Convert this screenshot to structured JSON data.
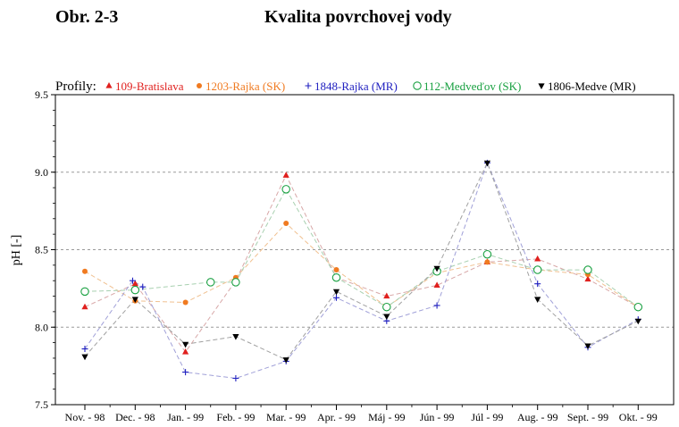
{
  "header": {
    "figure_label": "Obr. 2-3",
    "title": "Kvalita povrchovej vody"
  },
  "chart_data": {
    "type": "line",
    "legend_prefix": "Profily:",
    "legend_placement": "top",
    "ylabel": "pH [-]",
    "xlabel": "",
    "ylim": [
      7.5,
      9.5
    ],
    "yticks": [
      "7.5",
      "8.0",
      "8.5",
      "9.0",
      "9.5"
    ],
    "ytick_values": [
      7.5,
      8.0,
      8.5,
      9.0,
      9.5
    ],
    "grid": "horizontal dashed at 8.0, 8.5, 9.0",
    "categories": [
      "Nov. - 98",
      "Dec. - 98",
      "Jan. - 99",
      "Feb. - 99",
      "Mar. - 99",
      "Apr. - 99",
      "Máj - 99",
      "Jún - 99",
      "Júl - 99",
      "Aug. - 99",
      "Sept. - 99",
      "Okt. - 99"
    ],
    "series": [
      {
        "name": "109-Bratislava",
        "marker": "triangle-up",
        "color": "#e0201e",
        "line_color": "#d8a8a8",
        "points": [
          [
            0.0,
            8.13
          ],
          [
            1.0,
            8.28
          ],
          [
            2.0,
            7.84
          ],
          [
            3.0,
            8.3
          ],
          [
            4.0,
            8.98
          ],
          [
            5.0,
            8.32
          ],
          [
            6.0,
            8.2
          ],
          [
            7.0,
            8.27
          ],
          [
            8.0,
            8.42
          ],
          [
            9.0,
            8.44
          ],
          [
            10.0,
            8.31
          ],
          [
            11.0,
            8.13
          ]
        ]
      },
      {
        "name": "1203-Rajka (SK)",
        "marker": "dot",
        "color": "#f07a20",
        "line_color": "#f0c090",
        "points": [
          [
            0.0,
            8.36
          ],
          [
            1.0,
            8.17
          ],
          [
            2.0,
            8.16
          ],
          [
            3.0,
            8.32
          ],
          [
            4.0,
            8.67
          ],
          [
            5.0,
            8.37
          ],
          [
            6.0,
            8.13
          ],
          [
            7.0,
            8.35
          ],
          [
            8.0,
            8.42
          ],
          [
            9.0,
            8.37
          ],
          [
            10.0,
            8.34
          ],
          [
            11.0,
            8.13
          ]
        ]
      },
      {
        "name": "1848-Rajka (MR)",
        "marker": "plus",
        "color": "#2020c0",
        "line_color": "#a0a0d8",
        "points": [
          [
            0.0,
            7.86
          ],
          [
            0.95,
            8.3
          ],
          [
            1.15,
            8.26
          ],
          [
            2.0,
            7.71
          ],
          [
            3.0,
            7.67
          ],
          [
            4.0,
            7.78
          ],
          [
            5.0,
            8.19
          ],
          [
            6.0,
            8.04
          ],
          [
            7.0,
            8.14
          ],
          [
            8.0,
            9.06
          ],
          [
            9.0,
            8.28
          ],
          [
            10.0,
            7.87
          ],
          [
            11.0,
            8.05
          ]
        ]
      },
      {
        "name": "112-Medveďov (SK)",
        "marker": "circle-open",
        "color": "#18a040",
        "line_color": "#a8d0b0",
        "points": [
          [
            0.0,
            8.23
          ],
          [
            1.0,
            8.24
          ],
          [
            2.5,
            8.29
          ],
          [
            3.0,
            8.29
          ],
          [
            4.0,
            8.89
          ],
          [
            5.0,
            8.32
          ],
          [
            6.0,
            8.13
          ],
          [
            7.0,
            8.36
          ],
          [
            8.0,
            8.47
          ],
          [
            9.0,
            8.37
          ],
          [
            10.0,
            8.37
          ],
          [
            11.0,
            8.13
          ]
        ]
      },
      {
        "name": "1806-Medve (MR)",
        "marker": "triangle-down",
        "color": "#000000",
        "line_color": "#a0a0a0",
        "points": [
          [
            0.0,
            7.81
          ],
          [
            1.0,
            8.18
          ],
          [
            2.0,
            7.89
          ],
          [
            3.0,
            7.94
          ],
          [
            4.0,
            7.79
          ],
          [
            5.0,
            8.23
          ],
          [
            6.0,
            8.07
          ],
          [
            7.0,
            8.38
          ],
          [
            8.0,
            9.06
          ],
          [
            9.0,
            8.18
          ],
          [
            10.0,
            7.88
          ],
          [
            11.0,
            8.04
          ]
        ]
      }
    ]
  }
}
